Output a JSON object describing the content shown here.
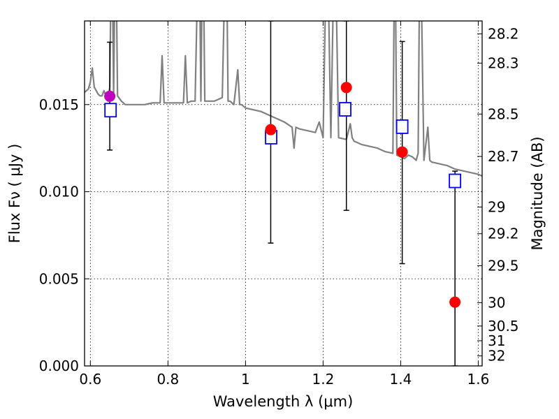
{
  "chart_data": {
    "type": "scatter",
    "xlabel": "Wavelength  λ (μm)",
    "ylabel": "Flux  Fν  ( μJy )",
    "ylabel_right": "Magnitude (AB)",
    "xlim": [
      0.585,
      1.61
    ],
    "ylim": [
      0.0,
      0.0198
    ],
    "grid": true,
    "x_ticks": [
      {
        "value": 0.6,
        "label": "0.6"
      },
      {
        "value": 0.8,
        "label": "0.8"
      },
      {
        "value": 1.0,
        "label": "1"
      },
      {
        "value": 1.2,
        "label": "1.2"
      },
      {
        "value": 1.4,
        "label": "1.4"
      },
      {
        "value": 1.6,
        "label": "1.6"
      }
    ],
    "y_ticks": [
      {
        "value": 0.0,
        "label": "0.000"
      },
      {
        "value": 0.005,
        "label": "0.005"
      },
      {
        "value": 0.01,
        "label": "0.010"
      },
      {
        "value": 0.015,
        "label": "0.015"
      }
    ],
    "right_ticks": [
      {
        "mag": 28.2,
        "label": "28.2"
      },
      {
        "mag": 28.3,
        "label": "28.3"
      },
      {
        "mag": 28.5,
        "label": "28.5"
      },
      {
        "mag": 28.7,
        "label": "28.7"
      },
      {
        "mag": 29.0,
        "label": "29"
      },
      {
        "mag": 29.2,
        "label": "29.2"
      },
      {
        "mag": 29.5,
        "label": "29.5"
      },
      {
        "mag": 30.0,
        "label": "30"
      },
      {
        "mag": 30.5,
        "label": "30.5"
      },
      {
        "mag": 31.0,
        "label": "31"
      },
      {
        "mag": 32.0,
        "label": "32"
      }
    ],
    "observed": {
      "color": "#ff0000",
      "points": [
        {
          "x": 1.065,
          "y": 0.01356,
          "yerr_low": 0.00705,
          "yerr_high": 0.0198
        },
        {
          "x": 1.26,
          "y": 0.01598,
          "yerr_low": 0.00893,
          "yerr_high": 0.0198
        },
        {
          "x": 1.404,
          "y": 0.01228,
          "yerr_low": 0.00587,
          "yerr_high": 0.01862
        },
        {
          "x": 1.54,
          "y": 0.00366,
          "yerr_low": 0.0,
          "yerr_high": 0.01118
        }
      ]
    },
    "observed_other": {
      "color": "#bf00bf",
      "points": [
        {
          "x": 0.65,
          "y": 0.01548,
          "yerr_low": 0.01239,
          "yerr_high": 0.01858
        }
      ]
    },
    "model_bands": {
      "color": "#0000ff",
      "points": [
        {
          "x": 0.652,
          "y": 0.01468
        },
        {
          "x": 1.066,
          "y": 0.01313
        },
        {
          "x": 1.257,
          "y": 0.01473
        },
        {
          "x": 1.404,
          "y": 0.01373
        },
        {
          "x": 1.54,
          "y": 0.01062
        }
      ]
    },
    "spectrum": {
      "color": "#808080",
      "x": [
        0.585,
        0.595,
        0.6,
        0.605,
        0.61,
        0.615,
        0.62,
        0.625,
        0.63,
        0.635,
        0.64,
        0.645,
        0.65,
        0.655,
        0.66,
        0.665,
        0.67,
        0.68,
        0.69,
        0.7,
        0.72,
        0.74,
        0.76,
        0.78,
        0.785,
        0.79,
        0.8,
        0.82,
        0.84,
        0.845,
        0.85,
        0.86,
        0.87,
        0.88,
        0.885,
        0.89,
        0.895,
        0.9,
        0.92,
        0.94,
        0.95,
        0.955,
        0.96,
        0.97,
        0.98,
        0.985,
        0.99,
        1.0,
        1.02,
        1.04,
        1.06,
        1.08,
        1.1,
        1.12,
        1.125,
        1.13,
        1.14,
        1.16,
        1.18,
        1.19,
        1.2,
        1.21,
        1.22,
        1.23,
        1.24,
        1.26,
        1.27,
        1.275,
        1.28,
        1.3,
        1.32,
        1.34,
        1.36,
        1.38,
        1.385,
        1.39,
        1.41,
        1.42,
        1.43,
        1.44,
        1.445,
        1.45,
        1.46,
        1.47,
        1.475,
        1.48,
        1.5,
        1.52,
        1.54,
        1.56,
        1.58,
        1.6,
        1.61
      ],
      "y": [
        0.0157,
        0.0159,
        0.0163,
        0.0171,
        0.016,
        0.0158,
        0.0156,
        0.0155,
        0.0155,
        0.0158,
        0.0155,
        0.0152,
        0.016,
        0.026,
        0.0155,
        0.026,
        0.0155,
        0.0152,
        0.015,
        0.015,
        0.015,
        0.015,
        0.0151,
        0.0151,
        0.0178,
        0.0151,
        0.0151,
        0.0151,
        0.0151,
        0.0178,
        0.0151,
        0.0152,
        0.0152,
        0.026,
        0.0152,
        0.026,
        0.0152,
        0.0152,
        0.0152,
        0.0154,
        0.026,
        0.0152,
        0.0152,
        0.015,
        0.017,
        0.015,
        0.015,
        0.0148,
        0.0147,
        0.0146,
        0.0144,
        0.0142,
        0.014,
        0.0137,
        0.0125,
        0.0137,
        0.0136,
        0.0135,
        0.0134,
        0.014,
        0.0131,
        0.026,
        0.0131,
        0.026,
        0.0131,
        0.013,
        0.0139,
        0.0131,
        0.0129,
        0.0127,
        0.0126,
        0.0125,
        0.0123,
        0.0122,
        0.026,
        0.0121,
        0.0119,
        0.0121,
        0.012,
        0.0118,
        0.0122,
        0.026,
        0.0118,
        0.0137,
        0.0118,
        0.0117,
        0.0116,
        0.0115,
        0.0113,
        0.0112,
        0.0111,
        0.011,
        0.0109
      ]
    }
  }
}
